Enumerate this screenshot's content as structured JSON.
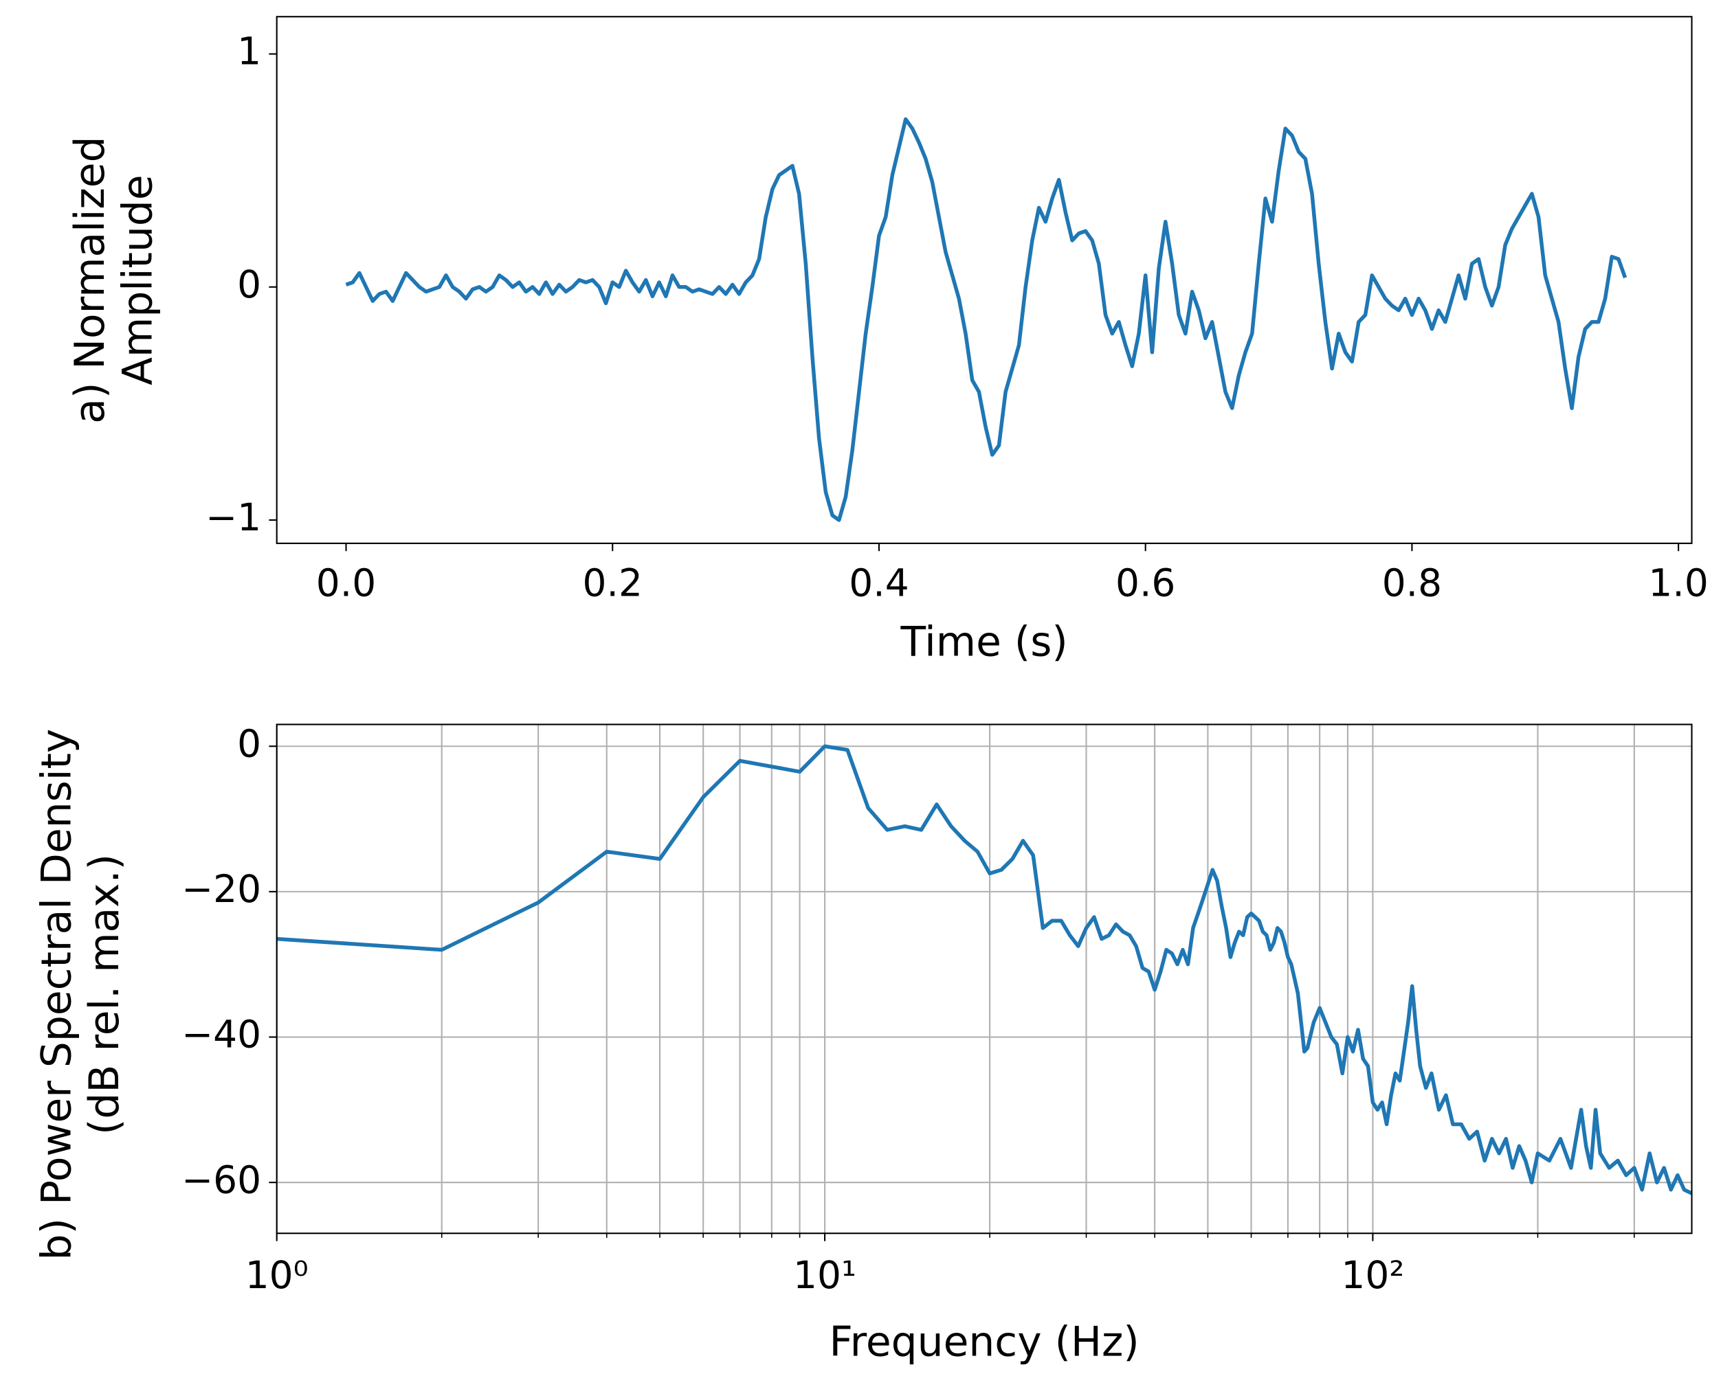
{
  "chart_data": [
    {
      "type": "line",
      "xlabel": "Time (s)",
      "ylabel": [
        "a) Normalized",
        "Amplitude"
      ],
      "x": [
        0.0,
        0.005,
        0.01,
        0.015,
        0.02,
        0.025,
        0.03,
        0.035,
        0.04,
        0.045,
        0.05,
        0.055,
        0.06,
        0.065,
        0.07,
        0.075,
        0.08,
        0.085,
        0.09,
        0.095,
        0.1,
        0.105,
        0.11,
        0.115,
        0.12,
        0.125,
        0.13,
        0.135,
        0.14,
        0.145,
        0.15,
        0.155,
        0.16,
        0.165,
        0.17,
        0.175,
        0.18,
        0.185,
        0.19,
        0.195,
        0.2,
        0.205,
        0.21,
        0.215,
        0.22,
        0.225,
        0.23,
        0.235,
        0.24,
        0.245,
        0.25,
        0.255,
        0.26,
        0.265,
        0.27,
        0.275,
        0.28,
        0.285,
        0.29,
        0.295,
        0.3,
        0.305,
        0.31,
        0.315,
        0.32,
        0.325,
        0.33,
        0.335,
        0.34,
        0.345,
        0.35,
        0.355,
        0.36,
        0.365,
        0.37,
        0.375,
        0.38,
        0.385,
        0.39,
        0.395,
        0.4,
        0.405,
        0.41,
        0.415,
        0.42,
        0.425,
        0.43,
        0.435,
        0.44,
        0.445,
        0.45,
        0.455,
        0.46,
        0.465,
        0.47,
        0.475,
        0.48,
        0.485,
        0.49,
        0.495,
        0.5,
        0.505,
        0.51,
        0.515,
        0.52,
        0.525,
        0.53,
        0.535,
        0.54,
        0.545,
        0.55,
        0.555,
        0.56,
        0.565,
        0.57,
        0.575,
        0.58,
        0.585,
        0.59,
        0.595,
        0.6,
        0.605,
        0.61,
        0.615,
        0.62,
        0.625,
        0.63,
        0.635,
        0.64,
        0.645,
        0.65,
        0.655,
        0.66,
        0.665,
        0.67,
        0.675,
        0.68,
        0.685,
        0.69,
        0.695,
        0.7,
        0.705,
        0.71,
        0.715,
        0.72,
        0.725,
        0.73,
        0.735,
        0.74,
        0.745,
        0.75,
        0.755,
        0.76,
        0.765,
        0.77,
        0.775,
        0.78,
        0.785,
        0.79,
        0.795,
        0.8,
        0.805,
        0.81,
        0.815,
        0.82,
        0.825,
        0.83,
        0.835,
        0.84,
        0.845,
        0.85,
        0.855,
        0.86,
        0.865,
        0.87,
        0.875,
        0.88,
        0.885,
        0.89,
        0.895,
        0.9,
        0.905,
        0.91,
        0.915,
        0.92,
        0.925,
        0.93,
        0.935,
        0.94,
        0.945,
        0.95,
        0.955,
        0.96
      ],
      "series": [
        {
          "color": "#1f77b4",
          "values": [
            0.01,
            0.02,
            0.06,
            0.0,
            -0.06,
            -0.03,
            -0.02,
            -0.06,
            0.0,
            0.06,
            0.03,
            0.0,
            -0.02,
            -0.01,
            0.0,
            0.05,
            0.0,
            -0.02,
            -0.05,
            -0.01,
            0.0,
            -0.02,
            0.0,
            0.05,
            0.03,
            0.0,
            0.02,
            -0.02,
            0.0,
            -0.03,
            0.02,
            -0.03,
            0.01,
            -0.02,
            0.0,
            0.03,
            0.02,
            0.03,
            0.0,
            -0.07,
            0.02,
            0.0,
            0.07,
            0.02,
            -0.02,
            0.03,
            -0.04,
            0.02,
            -0.04,
            0.05,
            0.0,
            0.0,
            -0.02,
            -0.01,
            -0.02,
            -0.03,
            0.0,
            -0.03,
            0.01,
            -0.03,
            0.02,
            0.05,
            0.12,
            0.3,
            0.42,
            0.48,
            0.5,
            0.52,
            0.4,
            0.1,
            -0.3,
            -0.65,
            -0.88,
            -0.98,
            -1.0,
            -0.9,
            -0.7,
            -0.45,
            -0.2,
            0.0,
            0.22,
            0.3,
            0.48,
            0.6,
            0.72,
            0.68,
            0.62,
            0.55,
            0.45,
            0.3,
            0.15,
            0.05,
            -0.05,
            -0.2,
            -0.4,
            -0.45,
            -0.6,
            -0.72,
            -0.68,
            -0.45,
            -0.35,
            -0.25,
            0.0,
            0.2,
            0.34,
            0.28,
            0.38,
            0.46,
            0.32,
            0.2,
            0.23,
            0.24,
            0.2,
            0.1,
            -0.12,
            -0.2,
            -0.15,
            -0.25,
            -0.34,
            -0.2,
            0.05,
            -0.28,
            0.08,
            0.28,
            0.1,
            -0.12,
            -0.2,
            -0.02,
            -0.1,
            -0.22,
            -0.15,
            -0.3,
            -0.45,
            -0.52,
            -0.38,
            -0.28,
            -0.2,
            0.1,
            0.38,
            0.28,
            0.5,
            0.68,
            0.65,
            0.58,
            0.55,
            0.4,
            0.1,
            -0.15,
            -0.35,
            -0.2,
            -0.28,
            -0.32,
            -0.15,
            -0.12,
            0.05,
            0.0,
            -0.05,
            -0.08,
            -0.1,
            -0.05,
            -0.12,
            -0.05,
            -0.1,
            -0.18,
            -0.1,
            -0.15,
            -0.05,
            0.05,
            -0.05,
            0.1,
            0.12,
            0.0,
            -0.08,
            0.0,
            0.18,
            0.25,
            0.3,
            0.35,
            0.4,
            0.3,
            0.05,
            -0.05,
            -0.15,
            -0.35,
            -0.52,
            -0.3,
            -0.18,
            -0.15,
            -0.15,
            -0.05,
            0.13,
            0.12,
            0.04
          ]
        }
      ],
      "xlim": [
        -0.052,
        1.01
      ],
      "ylim": [
        -1.1,
        1.16
      ],
      "xticks": [
        {
          "value": 0,
          "label": "0.0"
        },
        {
          "value": 0.2,
          "label": "0.2"
        },
        {
          "value": 0.4,
          "label": "0.4"
        },
        {
          "value": 0.6,
          "label": "0.6"
        },
        {
          "value": 0.8,
          "label": "0.8"
        },
        {
          "value": 1,
          "label": "1.0"
        }
      ],
      "yticks": [
        {
          "value": -1,
          "label": "−1"
        },
        0,
        1
      ],
      "grid": false,
      "xscale": "linear"
    },
    {
      "type": "line",
      "xlabel": "Frequency (Hz)",
      "ylabel": [
        "b) Power Spectral Density",
        "(dB rel. max.)"
      ],
      "x": [
        1,
        2,
        3,
        4,
        5,
        6,
        7,
        8,
        9,
        10,
        11,
        12,
        13,
        14,
        15,
        16,
        17,
        18,
        19,
        20,
        21,
        22,
        23,
        24,
        25,
        26,
        27,
        28,
        29,
        30,
        31,
        32,
        33,
        34,
        35,
        36,
        37,
        38,
        39,
        40,
        41,
        42,
        43,
        44,
        45,
        46,
        47,
        48,
        49,
        50,
        51,
        52,
        53,
        54,
        55,
        56,
        57,
        58,
        59,
        60,
        61,
        62,
        63,
        64,
        65,
        66,
        67,
        68,
        69,
        70,
        71,
        72,
        73,
        74,
        75,
        76,
        78,
        80,
        82,
        84,
        86,
        88,
        90,
        92,
        94,
        96,
        98,
        100,
        102,
        104,
        106,
        108,
        110,
        112,
        114,
        116,
        118,
        120,
        122,
        125,
        128,
        132,
        136,
        140,
        145,
        150,
        155,
        160,
        165,
        170,
        175,
        180,
        185,
        190,
        195,
        200,
        210,
        220,
        230,
        240,
        245,
        250,
        255,
        260,
        270,
        280,
        290,
        300,
        310,
        320,
        330,
        340,
        350,
        360,
        370,
        382
      ],
      "series": [
        {
          "color": "#1f77b4",
          "values": [
            -26.5,
            -28,
            -21.5,
            -14.5,
            -15.5,
            -7,
            -2,
            -2.8,
            -3.5,
            0,
            -0.5,
            -8.5,
            -11.5,
            -11,
            -11.5,
            -8,
            -11,
            -13,
            -14.5,
            -17.5,
            -17,
            -15.5,
            -13,
            -15,
            -25,
            -24,
            -24,
            -26,
            -27.5,
            -25,
            -23.5,
            -26.5,
            -26,
            -24.5,
            -25.5,
            -26,
            -27.5,
            -30.5,
            -31,
            -33.5,
            -31,
            -28,
            -28.5,
            -30,
            -28,
            -30,
            -25,
            -23,
            -21,
            -19,
            -17,
            -18.5,
            -22,
            -25,
            -29,
            -27,
            -25.5,
            -26,
            -23.5,
            -23,
            -23.5,
            -24,
            -25.5,
            -26,
            -28,
            -27,
            -25,
            -25.5,
            -27,
            -29,
            -30,
            -32,
            -34,
            -38,
            -42,
            -41.5,
            -38,
            -36,
            -38,
            -40,
            -41,
            -45,
            -40,
            -42,
            -39,
            -43,
            -44,
            -49,
            -50,
            -49,
            -52,
            -48,
            -45,
            -46,
            -42,
            -38,
            -33,
            -39,
            -44,
            -47,
            -45,
            -50,
            -48,
            -52,
            -52,
            -54,
            -53,
            -57,
            -54,
            -56,
            -54,
            -58,
            -55,
            -57,
            -60,
            -56,
            -57,
            -54,
            -58,
            -50,
            -55,
            -58,
            -50,
            -56,
            -58,
            -57,
            -59,
            -58,
            -61,
            -56,
            -60,
            -58,
            -61,
            -59,
            -61,
            -61.5
          ]
        }
      ],
      "xlim": [
        1,
        382
      ],
      "ylim": [
        -67,
        3
      ],
      "xticks": [
        {
          "value": 1,
          "label": "10⁰"
        },
        {
          "value": 10,
          "label": "10¹"
        },
        {
          "value": 100,
          "label": "10²"
        }
      ],
      "minor_xticks": [
        2,
        3,
        4,
        5,
        6,
        7,
        8,
        9,
        20,
        30,
        40,
        50,
        60,
        70,
        80,
        90,
        200,
        300
      ],
      "yticks": [
        0,
        {
          "value": -20,
          "label": "−20"
        },
        {
          "value": -40,
          "label": "−40"
        },
        {
          "value": -60,
          "label": "−60"
        }
      ],
      "grid": true,
      "xscale": "log"
    }
  ]
}
